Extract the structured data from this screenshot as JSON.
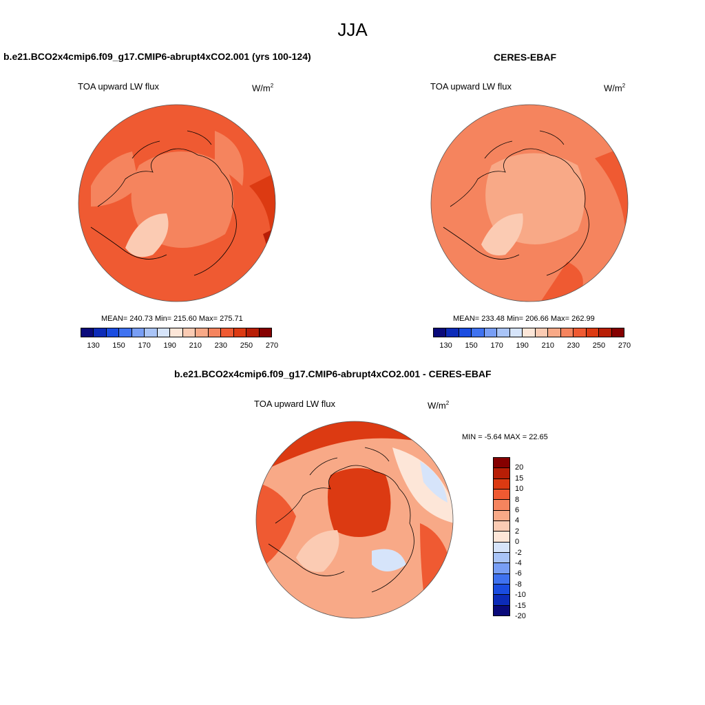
{
  "figure": {
    "title": "JJA"
  },
  "panels": [
    {
      "title": "b.e21.BCO2x4cmip6.f09_g17.CMIP6-abrupt4xCO2.001 (yrs 100-124)",
      "variable": "TOA upward LW flux",
      "units_base": "W/m",
      "units_exp": "2",
      "stats": "MEAN= 240.73  Min= 215.60  Max= 275.71",
      "colorbar_ticks": [
        "130",
        "150",
        "170",
        "190",
        "210",
        "230",
        "250",
        "270"
      ]
    },
    {
      "title": "CERES-EBAF",
      "variable": "TOA upward LW flux",
      "units_base": "W/m",
      "units_exp": "2",
      "stats": "MEAN= 233.48  Min= 206.66  Max= 262.99",
      "colorbar_ticks": [
        "130",
        "150",
        "170",
        "190",
        "210",
        "230",
        "250",
        "270"
      ]
    },
    {
      "title": "b.e21.BCO2x4cmip6.f09_g17.CMIP6-abrupt4xCO2.001 - CERES-EBAF",
      "variable": "TOA upward LW flux",
      "units_base": "W/m",
      "units_exp": "2",
      "stats": "MIN =  -5.64 MAX =  22.65",
      "colorbar_ticks": [
        "20",
        "15",
        "10",
        "8",
        "6",
        "4",
        "2",
        "0",
        "-2",
        "-4",
        "-6",
        "-8",
        "-10",
        "-15",
        "-20"
      ]
    }
  ],
  "colors": {
    "abs_scale": [
      "#0a0a7a",
      "#0c2bb8",
      "#1a4ce0",
      "#3f72f0",
      "#789ef5",
      "#a9c4f7",
      "#d6e4fa",
      "#fde6d8",
      "#fbcbb3",
      "#f8a987",
      "#f5845e",
      "#ef5a32",
      "#dc3a12",
      "#b81e06",
      "#850000"
    ],
    "diff_scale": [
      "#850000",
      "#b81e06",
      "#dc3a12",
      "#ef5a32",
      "#f5845e",
      "#f8a987",
      "#fbcbb3",
      "#fde6d8",
      "#d6e4fa",
      "#a9c4f7",
      "#789ef5",
      "#3f72f0",
      "#1a4ce0",
      "#0c2bb8",
      "#0a0a7a"
    ]
  }
}
